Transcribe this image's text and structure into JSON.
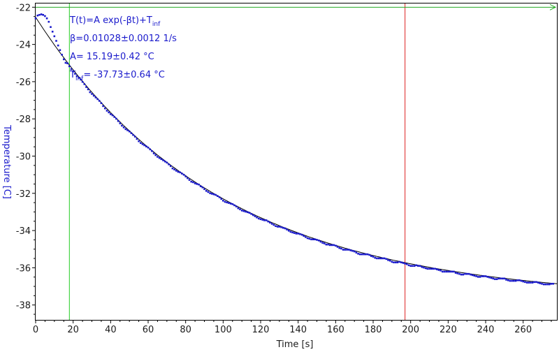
{
  "chart_data": {
    "type": "scatter",
    "xlabel": "Time [s]",
    "ylabel": "Temperature [C]",
    "xlim": [
      0,
      278
    ],
    "ylim": [
      -38.8,
      -21.8
    ],
    "x_ticks": [
      "0",
      "20",
      "40",
      "60",
      "80",
      "100",
      "120",
      "140",
      "160",
      "180",
      "200",
      "220",
      "240",
      "260"
    ],
    "x_tick_values": [
      0,
      20,
      40,
      60,
      80,
      100,
      120,
      140,
      160,
      180,
      200,
      220,
      240,
      260
    ],
    "y_ticks": [
      "-22",
      "-24",
      "-26",
      "-28",
      "-30",
      "-32",
      "-34",
      "-36",
      "-38"
    ],
    "y_tick_values": [
      -22,
      -24,
      -26,
      -28,
      -30,
      -32,
      -34,
      -36,
      -38
    ],
    "grid": false,
    "model": {
      "A": 15.19,
      "beta": 0.01028,
      "T_inf": -37.73,
      "t_range": [
        0,
        278
      ]
    },
    "measured_series": {
      "color": "#1a1acc",
      "marker": "square",
      "t_start": 0,
      "t_end": 276,
      "t_step": 1,
      "initial_points": [
        [
          0,
          -22.6
        ],
        [
          1,
          -22.45
        ],
        [
          2,
          -22.4
        ],
        [
          3,
          -22.38
        ],
        [
          4,
          -22.4
        ],
        [
          5,
          -22.48
        ],
        [
          6,
          -22.6
        ],
        [
          7,
          -22.8
        ],
        [
          8,
          -23.05
        ],
        [
          9,
          -23.3
        ],
        [
          10,
          -23.55
        ],
        [
          11,
          -23.8
        ],
        [
          12,
          -24.05
        ],
        [
          13,
          -24.3
        ],
        [
          14,
          -24.55
        ],
        [
          15,
          -24.8
        ],
        [
          16,
          -25.0
        ]
      ]
    },
    "fit_series": {
      "color": "#000000"
    },
    "cursors": [
      {
        "name": "left-cursor",
        "x": 18,
        "color": "#22cc22"
      },
      {
        "name": "right-cursor",
        "x": 197,
        "color": "#dd2222"
      }
    ],
    "baseline_arrow": {
      "y": -22,
      "color": "#22aa22"
    },
    "annotations": {
      "formula_main": "T(t)=A exp(-βt)+T",
      "formula_sub": "inf",
      "beta_line": "β=0.01028±0.0012 1/s",
      "a_line": "A= 15.19±0.42 °C",
      "tinf_main": "T",
      "tinf_sub": "inf",
      "tinf_rest": "= -37.73±0.64 °C"
    },
    "colors": {
      "axis_label": "#1a1acc",
      "data": "#1a1acc",
      "fit": "#000000"
    }
  }
}
